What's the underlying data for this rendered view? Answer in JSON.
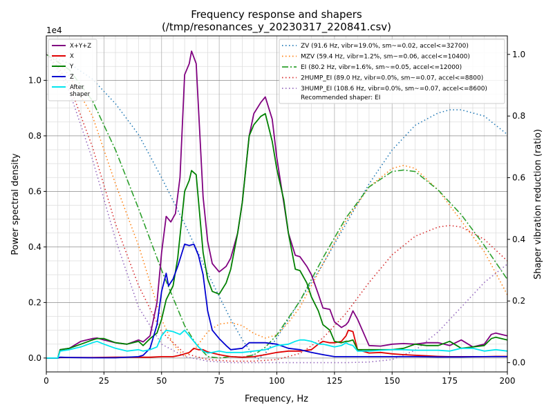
{
  "chart_data": {
    "type": "line",
    "title": "Frequency response and shapers",
    "subtitle": "(/tmp/resonances_y_20230317_220841.csv)",
    "xlabel": "Frequency, Hz",
    "ylabel": "Power spectral density",
    "y2label": "Shaper vibration reduction (ratio)",
    "y_multiplier_label": "1e4",
    "xlim": [
      0,
      200
    ],
    "ylim": [
      -0.05,
      1.16
    ],
    "y2lim": [
      -0.03,
      1.06
    ],
    "x_ticks": [
      0,
      25,
      50,
      75,
      100,
      125,
      150,
      175,
      200
    ],
    "x_tick_labels": [
      "0",
      "25",
      "50",
      "75",
      "100",
      "125",
      "150",
      "175",
      "200"
    ],
    "y_ticks": [
      0.0,
      0.2,
      0.4,
      0.6,
      0.8,
      1.0
    ],
    "y_tick_labels": [
      "0.0",
      "0.2",
      "0.4",
      "0.6",
      "0.8",
      "1.0"
    ],
    "y2_ticks": [
      0.0,
      0.2,
      0.4,
      0.6,
      0.8,
      1.0
    ],
    "y2_tick_labels": [
      "0.0",
      "0.2",
      "0.4",
      "0.6",
      "0.8",
      "1.0"
    ],
    "grid": true,
    "legend_left_placement": "top-left",
    "legend_right_placement": "top-right",
    "psd_series": [
      {
        "name": "X+Y+Z",
        "label": "X+Y+Z",
        "color": "#800080",
        "x": [
          0,
          5,
          6,
          10,
          15,
          20,
          22,
          25,
          30,
          35,
          40,
          42,
          45,
          48,
          50,
          52,
          54,
          56,
          58,
          60,
          62,
          63,
          65,
          68,
          70,
          72,
          75,
          78,
          80,
          83,
          85,
          88,
          90,
          93,
          95,
          98,
          100,
          103,
          105,
          108,
          110,
          113,
          115,
          118,
          120,
          123,
          125,
          128,
          130,
          131,
          133,
          135,
          140,
          145,
          150,
          155,
          160,
          165,
          170,
          175,
          180,
          185,
          190,
          193,
          195,
          200
        ],
        "y": [
          0,
          0,
          0.03,
          0.035,
          0.06,
          0.07,
          0.072,
          0.065,
          0.055,
          0.05,
          0.065,
          0.058,
          0.08,
          0.2,
          0.38,
          0.51,
          0.49,
          0.52,
          0.65,
          1.02,
          1.06,
          1.105,
          1.06,
          0.58,
          0.42,
          0.34,
          0.31,
          0.33,
          0.36,
          0.45,
          0.56,
          0.8,
          0.88,
          0.92,
          0.94,
          0.86,
          0.72,
          0.56,
          0.45,
          0.37,
          0.365,
          0.33,
          0.3,
          0.23,
          0.18,
          0.175,
          0.13,
          0.11,
          0.12,
          0.13,
          0.17,
          0.14,
          0.045,
          0.043,
          0.05,
          0.052,
          0.05,
          0.055,
          0.055,
          0.045,
          0.065,
          0.04,
          0.05,
          0.085,
          0.09,
          0.08
        ]
      },
      {
        "name": "X",
        "label": "X",
        "color": "#e00000",
        "x": [
          0,
          5,
          6,
          10,
          20,
          30,
          40,
          45,
          50,
          55,
          58,
          60,
          62,
          64,
          66,
          68,
          70,
          75,
          80,
          85,
          90,
          95,
          100,
          105,
          110,
          115,
          118,
          120,
          123,
          125,
          128,
          130,
          131,
          133,
          135,
          140,
          145,
          150,
          155,
          160,
          165,
          170,
          175,
          180,
          185,
          190,
          195,
          200
        ],
        "y": [
          0,
          0,
          0.002,
          0.002,
          0.002,
          0.003,
          0.003,
          0.003,
          0.005,
          0.005,
          0.01,
          0.015,
          0.02,
          0.035,
          0.03,
          0.03,
          0.022,
          0.012,
          0.005,
          0.003,
          0.005,
          0.012,
          0.02,
          0.025,
          0.025,
          0.03,
          0.05,
          0.06,
          0.055,
          0.055,
          0.06,
          0.08,
          0.1,
          0.095,
          0.03,
          0.018,
          0.02,
          0.015,
          0.012,
          0.01,
          0.008,
          0.006,
          0.005,
          0.005,
          0.005,
          0.005,
          0.006,
          0.006
        ]
      },
      {
        "name": "Y",
        "label": "Y",
        "color": "#008000",
        "x": [
          0,
          5,
          6,
          10,
          15,
          20,
          22,
          25,
          30,
          35,
          40,
          42,
          45,
          48,
          50,
          52,
          55,
          57,
          60,
          62,
          63,
          65,
          68,
          70,
          72,
          75,
          78,
          80,
          83,
          85,
          88,
          90,
          93,
          95,
          98,
          100,
          103,
          105,
          108,
          110,
          113,
          115,
          118,
          120,
          123,
          125,
          128,
          130,
          131,
          133,
          135,
          140,
          145,
          150,
          155,
          160,
          165,
          170,
          175,
          180,
          185,
          190,
          193,
          195,
          200
        ],
        "y": [
          0,
          0,
          0.03,
          0.035,
          0.05,
          0.065,
          0.07,
          0.07,
          0.055,
          0.05,
          0.06,
          0.045,
          0.07,
          0.09,
          0.14,
          0.21,
          0.26,
          0.36,
          0.6,
          0.64,
          0.675,
          0.66,
          0.38,
          0.285,
          0.24,
          0.23,
          0.27,
          0.32,
          0.45,
          0.56,
          0.8,
          0.84,
          0.87,
          0.88,
          0.78,
          0.68,
          0.57,
          0.45,
          0.32,
          0.315,
          0.27,
          0.22,
          0.17,
          0.12,
          0.1,
          0.06,
          0.055,
          0.06,
          0.06,
          0.065,
          0.03,
          0.03,
          0.03,
          0.03,
          0.035,
          0.05,
          0.045,
          0.045,
          0.06,
          0.035,
          0.04,
          0.045,
          0.07,
          0.075,
          0.065
        ]
      },
      {
        "name": "Z",
        "label": "Z",
        "color": "#0000d0",
        "x": [
          0,
          5,
          6,
          10,
          20,
          30,
          40,
          42,
          45,
          48,
          50,
          52,
          53,
          55,
          57,
          60,
          62,
          64,
          66,
          68,
          70,
          72,
          75,
          78,
          80,
          85,
          88,
          90,
          95,
          100,
          105,
          110,
          115,
          120,
          125,
          130,
          135,
          140,
          145,
          150,
          160,
          170,
          180,
          190,
          195,
          200
        ],
        "y": [
          0,
          0,
          0.003,
          0.002,
          0.001,
          0.001,
          0.005,
          0.01,
          0.035,
          0.12,
          0.24,
          0.305,
          0.26,
          0.285,
          0.33,
          0.41,
          0.405,
          0.41,
          0.37,
          0.3,
          0.17,
          0.1,
          0.07,
          0.045,
          0.03,
          0.035,
          0.055,
          0.055,
          0.055,
          0.05,
          0.035,
          0.03,
          0.02,
          0.012,
          0.005,
          0.005,
          0.005,
          0.005,
          0.005,
          0.005,
          0.005,
          0.004,
          0.004,
          0.005,
          0.005,
          0.005
        ]
      },
      {
        "name": "After shaper",
        "label_line1": "After",
        "label_line2": "shaper",
        "color": "#00e5ee",
        "x": [
          0,
          5,
          6,
          10,
          15,
          20,
          22,
          25,
          30,
          35,
          40,
          42,
          45,
          48,
          50,
          52,
          55,
          58,
          60,
          62,
          64,
          66,
          68,
          70,
          72,
          75,
          78,
          80,
          85,
          90,
          95,
          100,
          105,
          108,
          110,
          112,
          115,
          118,
          120,
          125,
          128,
          130,
          131,
          133,
          135,
          140,
          145,
          150,
          155,
          160,
          165,
          170,
          175,
          180,
          185,
          190,
          195,
          200
        ],
        "y": [
          0,
          0,
          0.025,
          0.03,
          0.04,
          0.055,
          0.06,
          0.05,
          0.035,
          0.025,
          0.03,
          0.025,
          0.03,
          0.04,
          0.08,
          0.1,
          0.095,
          0.085,
          0.1,
          0.08,
          0.06,
          0.04,
          0.025,
          0.018,
          0.02,
          0.025,
          0.02,
          0.02,
          0.02,
          0.025,
          0.03,
          0.045,
          0.05,
          0.06,
          0.065,
          0.065,
          0.06,
          0.05,
          0.05,
          0.04,
          0.045,
          0.055,
          0.05,
          0.045,
          0.025,
          0.025,
          0.028,
          0.03,
          0.03,
          0.028,
          0.028,
          0.028,
          0.025,
          0.035,
          0.035,
          0.025,
          0.03,
          0.025
        ]
      }
    ],
    "shaper_series": [
      {
        "name": "ZV",
        "label": "ZV (91.6 Hz, vibr=19.0%, sm~=0.02, accel<=32700)",
        "color": "#1f77b4",
        "dash": "dotted",
        "x": [
          0,
          10,
          20,
          30,
          40,
          50,
          60,
          70,
          80,
          85,
          90,
          92,
          95,
          100,
          110,
          120,
          130,
          140,
          150,
          160,
          170,
          175,
          180,
          190,
          200
        ],
        "y": [
          1.0,
          0.97,
          0.92,
          0.84,
          0.74,
          0.6,
          0.45,
          0.29,
          0.14,
          0.075,
          0.02,
          0.012,
          0.03,
          0.08,
          0.2,
          0.32,
          0.45,
          0.58,
          0.69,
          0.77,
          0.81,
          0.82,
          0.82,
          0.8,
          0.74
        ]
      },
      {
        "name": "MZV",
        "label": "MZV (59.4 Hz, vibr=1.2%, sm~=0.06, accel<=10400)",
        "color": "#ff7f0e",
        "dash": "dotted",
        "x": [
          0,
          5,
          10,
          20,
          30,
          40,
          50,
          55,
          60,
          65,
          70,
          75,
          80,
          85,
          90,
          95,
          100,
          105,
          110,
          120,
          130,
          140,
          150,
          155,
          160,
          170,
          180,
          190,
          200
        ],
        "y": [
          1.0,
          0.98,
          0.93,
          0.8,
          0.58,
          0.38,
          0.14,
          0.06,
          0.02,
          0.05,
          0.1,
          0.125,
          0.13,
          0.12,
          0.095,
          0.08,
          0.09,
          0.13,
          0.18,
          0.32,
          0.46,
          0.57,
          0.63,
          0.64,
          0.63,
          0.56,
          0.46,
          0.36,
          0.22
        ]
      },
      {
        "name": "EI",
        "label": "EI (80.2 Hz, vibr=1.6%, sm~=0.05, accel<=12000)",
        "color": "#2ca02c",
        "dash": "dashdot",
        "x": [
          0,
          10,
          20,
          30,
          40,
          50,
          60,
          65,
          70,
          75,
          80,
          85,
          90,
          95,
          100,
          110,
          120,
          130,
          140,
          150,
          155,
          160,
          170,
          180,
          190,
          200
        ],
        "y": [
          1.0,
          0.95,
          0.85,
          0.69,
          0.5,
          0.3,
          0.12,
          0.06,
          0.02,
          0.015,
          0.02,
          0.018,
          0.025,
          0.05,
          0.09,
          0.2,
          0.34,
          0.47,
          0.57,
          0.62,
          0.625,
          0.62,
          0.56,
          0.48,
          0.38,
          0.27
        ]
      },
      {
        "name": "2HUMP_EI",
        "label": "2HUMP_EI (89.0 Hz, vibr=0.0%, sm~=0.07, accel<=8800)",
        "color": "#d62728",
        "dash": "dotted",
        "x": [
          0,
          5,
          10,
          20,
          30,
          40,
          50,
          60,
          70,
          80,
          90,
          100,
          110,
          120,
          130,
          140,
          150,
          160,
          170,
          175,
          180,
          190,
          200
        ],
        "y": [
          1.0,
          0.96,
          0.9,
          0.7,
          0.45,
          0.25,
          0.1,
          0.03,
          0.01,
          0.005,
          0.005,
          0.01,
          0.03,
          0.08,
          0.16,
          0.26,
          0.35,
          0.41,
          0.44,
          0.445,
          0.44,
          0.4,
          0.33
        ]
      },
      {
        "name": "3HUMP_EI",
        "label": "3HUMP_EI (108.6 Hz, vibr=0.0%, sm~=0.07, accel<=8600)",
        "color": "#9467bd",
        "dash": "dotted",
        "x": [
          0,
          5,
          10,
          20,
          30,
          40,
          50,
          60,
          70,
          80,
          90,
          100,
          110,
          120,
          130,
          140,
          150,
          160,
          170,
          180,
          190,
          200
        ],
        "y": [
          1.0,
          0.95,
          0.88,
          0.66,
          0.4,
          0.18,
          0.06,
          0.02,
          0.005,
          0.0,
          0.0,
          0.0,
          0.0,
          0.0,
          0.0,
          0.002,
          0.01,
          0.04,
          0.1,
          0.18,
          0.26,
          0.32
        ]
      }
    ],
    "recommended_label": "Recommended shaper: EI"
  }
}
